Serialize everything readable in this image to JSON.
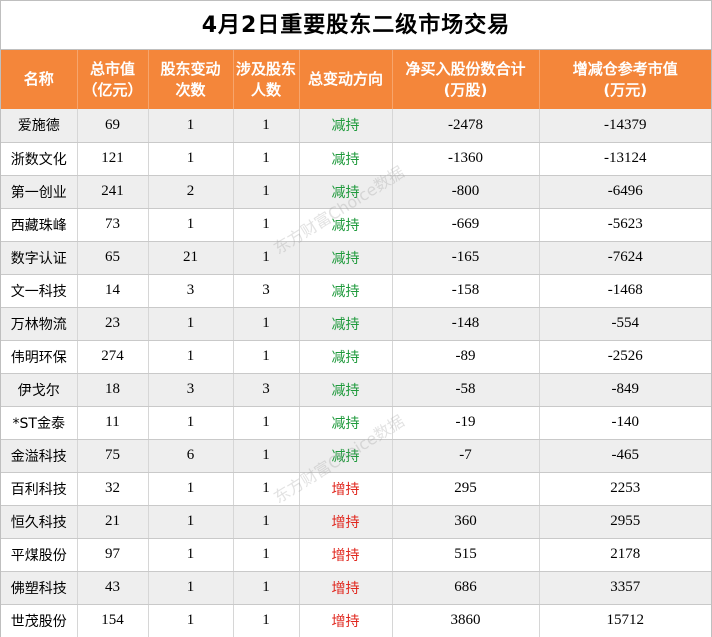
{
  "title": "4月2日重要股东二级市场交易",
  "headers": [
    [
      "名称"
    ],
    [
      "总市值",
      "（亿元）"
    ],
    [
      "股东变动",
      "次数"
    ],
    [
      "涉及股东",
      "人数"
    ],
    [
      "总变动方向"
    ],
    [
      "净买入股份数合计",
      "(万股)"
    ],
    [
      "增减仓参考市值",
      "(万元)"
    ]
  ],
  "rows": [
    {
      "name": "爱施德",
      "mcap": "69",
      "times": "1",
      "people": "1",
      "dir": "减持",
      "net": "-2478",
      "value": "-14379"
    },
    {
      "name": "浙数文化",
      "mcap": "121",
      "times": "1",
      "people": "1",
      "dir": "减持",
      "net": "-1360",
      "value": "-13124"
    },
    {
      "name": "第一创业",
      "mcap": "241",
      "times": "2",
      "people": "1",
      "dir": "减持",
      "net": "-800",
      "value": "-6496"
    },
    {
      "name": "西藏珠峰",
      "mcap": "73",
      "times": "1",
      "people": "1",
      "dir": "减持",
      "net": "-669",
      "value": "-5623"
    },
    {
      "name": "数字认证",
      "mcap": "65",
      "times": "21",
      "people": "1",
      "dir": "减持",
      "net": "-165",
      "value": "-7624"
    },
    {
      "name": "文一科技",
      "mcap": "14",
      "times": "3",
      "people": "3",
      "dir": "减持",
      "net": "-158",
      "value": "-1468"
    },
    {
      "name": "万林物流",
      "mcap": "23",
      "times": "1",
      "people": "1",
      "dir": "减持",
      "net": "-148",
      "value": "-554"
    },
    {
      "name": "伟明环保",
      "mcap": "274",
      "times": "1",
      "people": "1",
      "dir": "减持",
      "net": "-89",
      "value": "-2526"
    },
    {
      "name": "伊戈尔",
      "mcap": "18",
      "times": "3",
      "people": "3",
      "dir": "减持",
      "net": "-58",
      "value": "-849"
    },
    {
      "name": "*ST金泰",
      "mcap": "11",
      "times": "1",
      "people": "1",
      "dir": "减持",
      "net": "-19",
      "value": "-140"
    },
    {
      "name": "金溢科技",
      "mcap": "75",
      "times": "6",
      "people": "1",
      "dir": "减持",
      "net": "-7",
      "value": "-465"
    },
    {
      "name": "百利科技",
      "mcap": "32",
      "times": "1",
      "people": "1",
      "dir": "增持",
      "net": "295",
      "value": "2253"
    },
    {
      "name": "恒久科技",
      "mcap": "21",
      "times": "1",
      "people": "1",
      "dir": "增持",
      "net": "360",
      "value": "2955"
    },
    {
      "name": "平煤股份",
      "mcap": "97",
      "times": "1",
      "people": "1",
      "dir": "增持",
      "net": "515",
      "value": "2178"
    },
    {
      "name": "佛塑科技",
      "mcap": "43",
      "times": "1",
      "people": "1",
      "dir": "增持",
      "net": "686",
      "value": "3357"
    },
    {
      "name": "世茂股份",
      "mcap": "154",
      "times": "1",
      "people": "1",
      "dir": "增持",
      "net": "3860",
      "value": "15712"
    }
  ],
  "colors": {
    "header_bg": "#f4863a",
    "decrease": "#1f9a3c",
    "increase": "#e0261d"
  },
  "watermark": "东方财富Choice数据"
}
